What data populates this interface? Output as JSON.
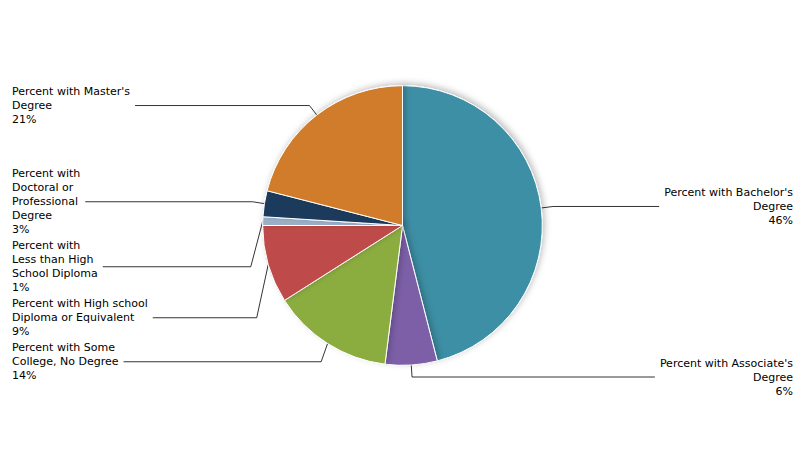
{
  "chart_data": {
    "type": "pie",
    "categories": [
      "Percent with Bachelor's\nDegree\n46%",
      "Percent with Associate's\nDegree\n6%",
      "Percent with Some\nCollege, No Degree\n14%",
      "Percent with High school\nDiploma or Equivalent\n9%",
      "Percent with\nLess than High\nSchool Diploma\n1%",
      "Percent with\nDoctoral or\nProfessional\nDegree\n3%",
      "Percent with Master's\nDegree\n21%"
    ],
    "values": [
      46,
      6,
      14,
      9,
      1,
      3,
      21
    ],
    "colors": [
      "#3C8FA5",
      "#7B5EA7",
      "#8BAD3F",
      "#BE4B48",
      "#9BAFC7",
      "#1B3A5C",
      "#D07B2A"
    ]
  }
}
